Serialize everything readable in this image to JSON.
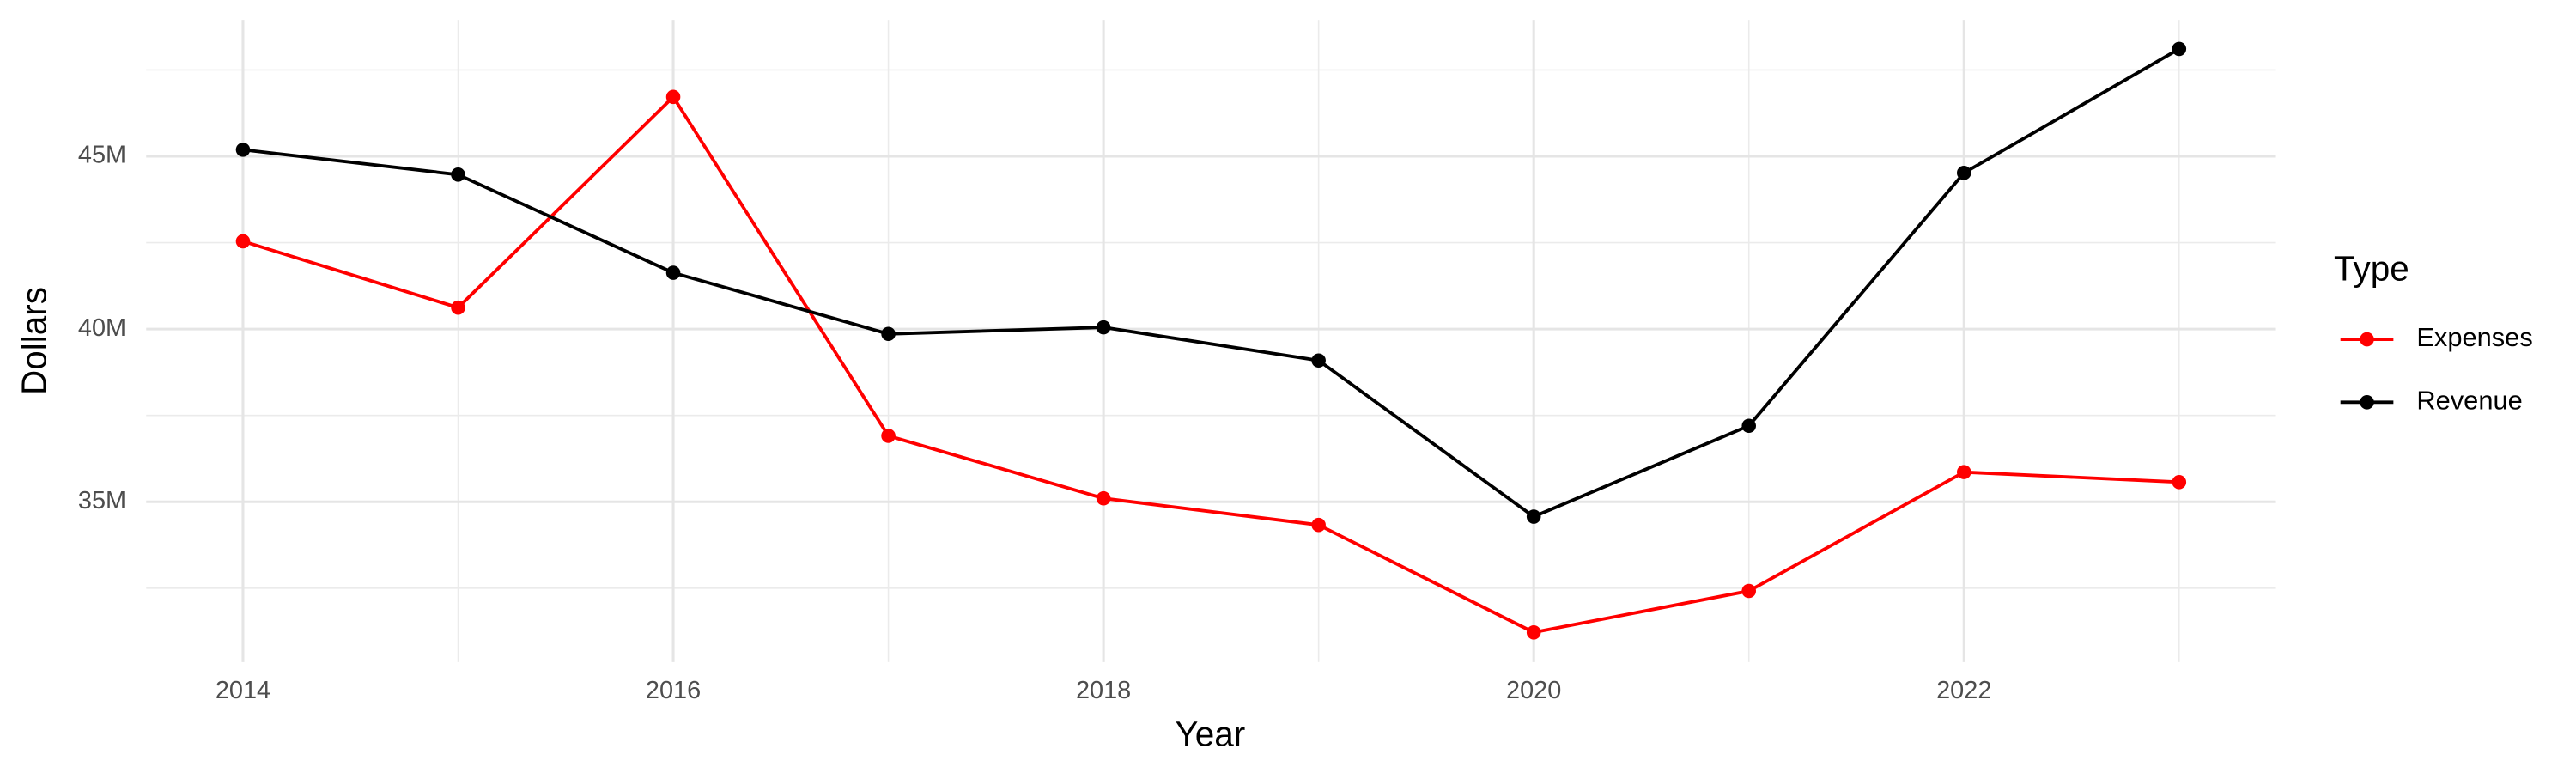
{
  "chart_data": {
    "type": "line",
    "x_label": "Year",
    "y_label": "Dollars",
    "legend_title": "Type",
    "legend_position": "right",
    "x": [
      2014,
      2015,
      2016,
      2017,
      2018,
      2019,
      2020,
      2021,
      2022,
      2023
    ],
    "series": [
      {
        "name": "Expenses",
        "color": "#ff0000",
        "values": [
          42540000,
          40620000,
          46720000,
          36910000,
          35100000,
          34330000,
          31220000,
          32420000,
          35860000,
          35570000
        ]
      },
      {
        "name": "Revenue",
        "color": "#000000",
        "values": [
          45190000,
          44470000,
          41630000,
          39860000,
          40050000,
          39090000,
          34570000,
          37200000,
          44520000,
          48110000
        ]
      }
    ],
    "xlim": [
      2013.55,
      2023.45
    ],
    "xticks": [
      2014,
      2016,
      2018,
      2020,
      2022
    ],
    "xminor": [
      2015,
      2017,
      2019,
      2021,
      2023
    ],
    "ylim": [
      30360000,
      48950000
    ],
    "yticks": [
      {
        "value": 35000000,
        "label": "35M"
      },
      {
        "value": 40000000,
        "label": "40M"
      },
      {
        "value": 45000000,
        "label": "45M"
      }
    ],
    "yminor": [
      32500000,
      37500000,
      42500000,
      47500000
    ],
    "grid": true
  }
}
